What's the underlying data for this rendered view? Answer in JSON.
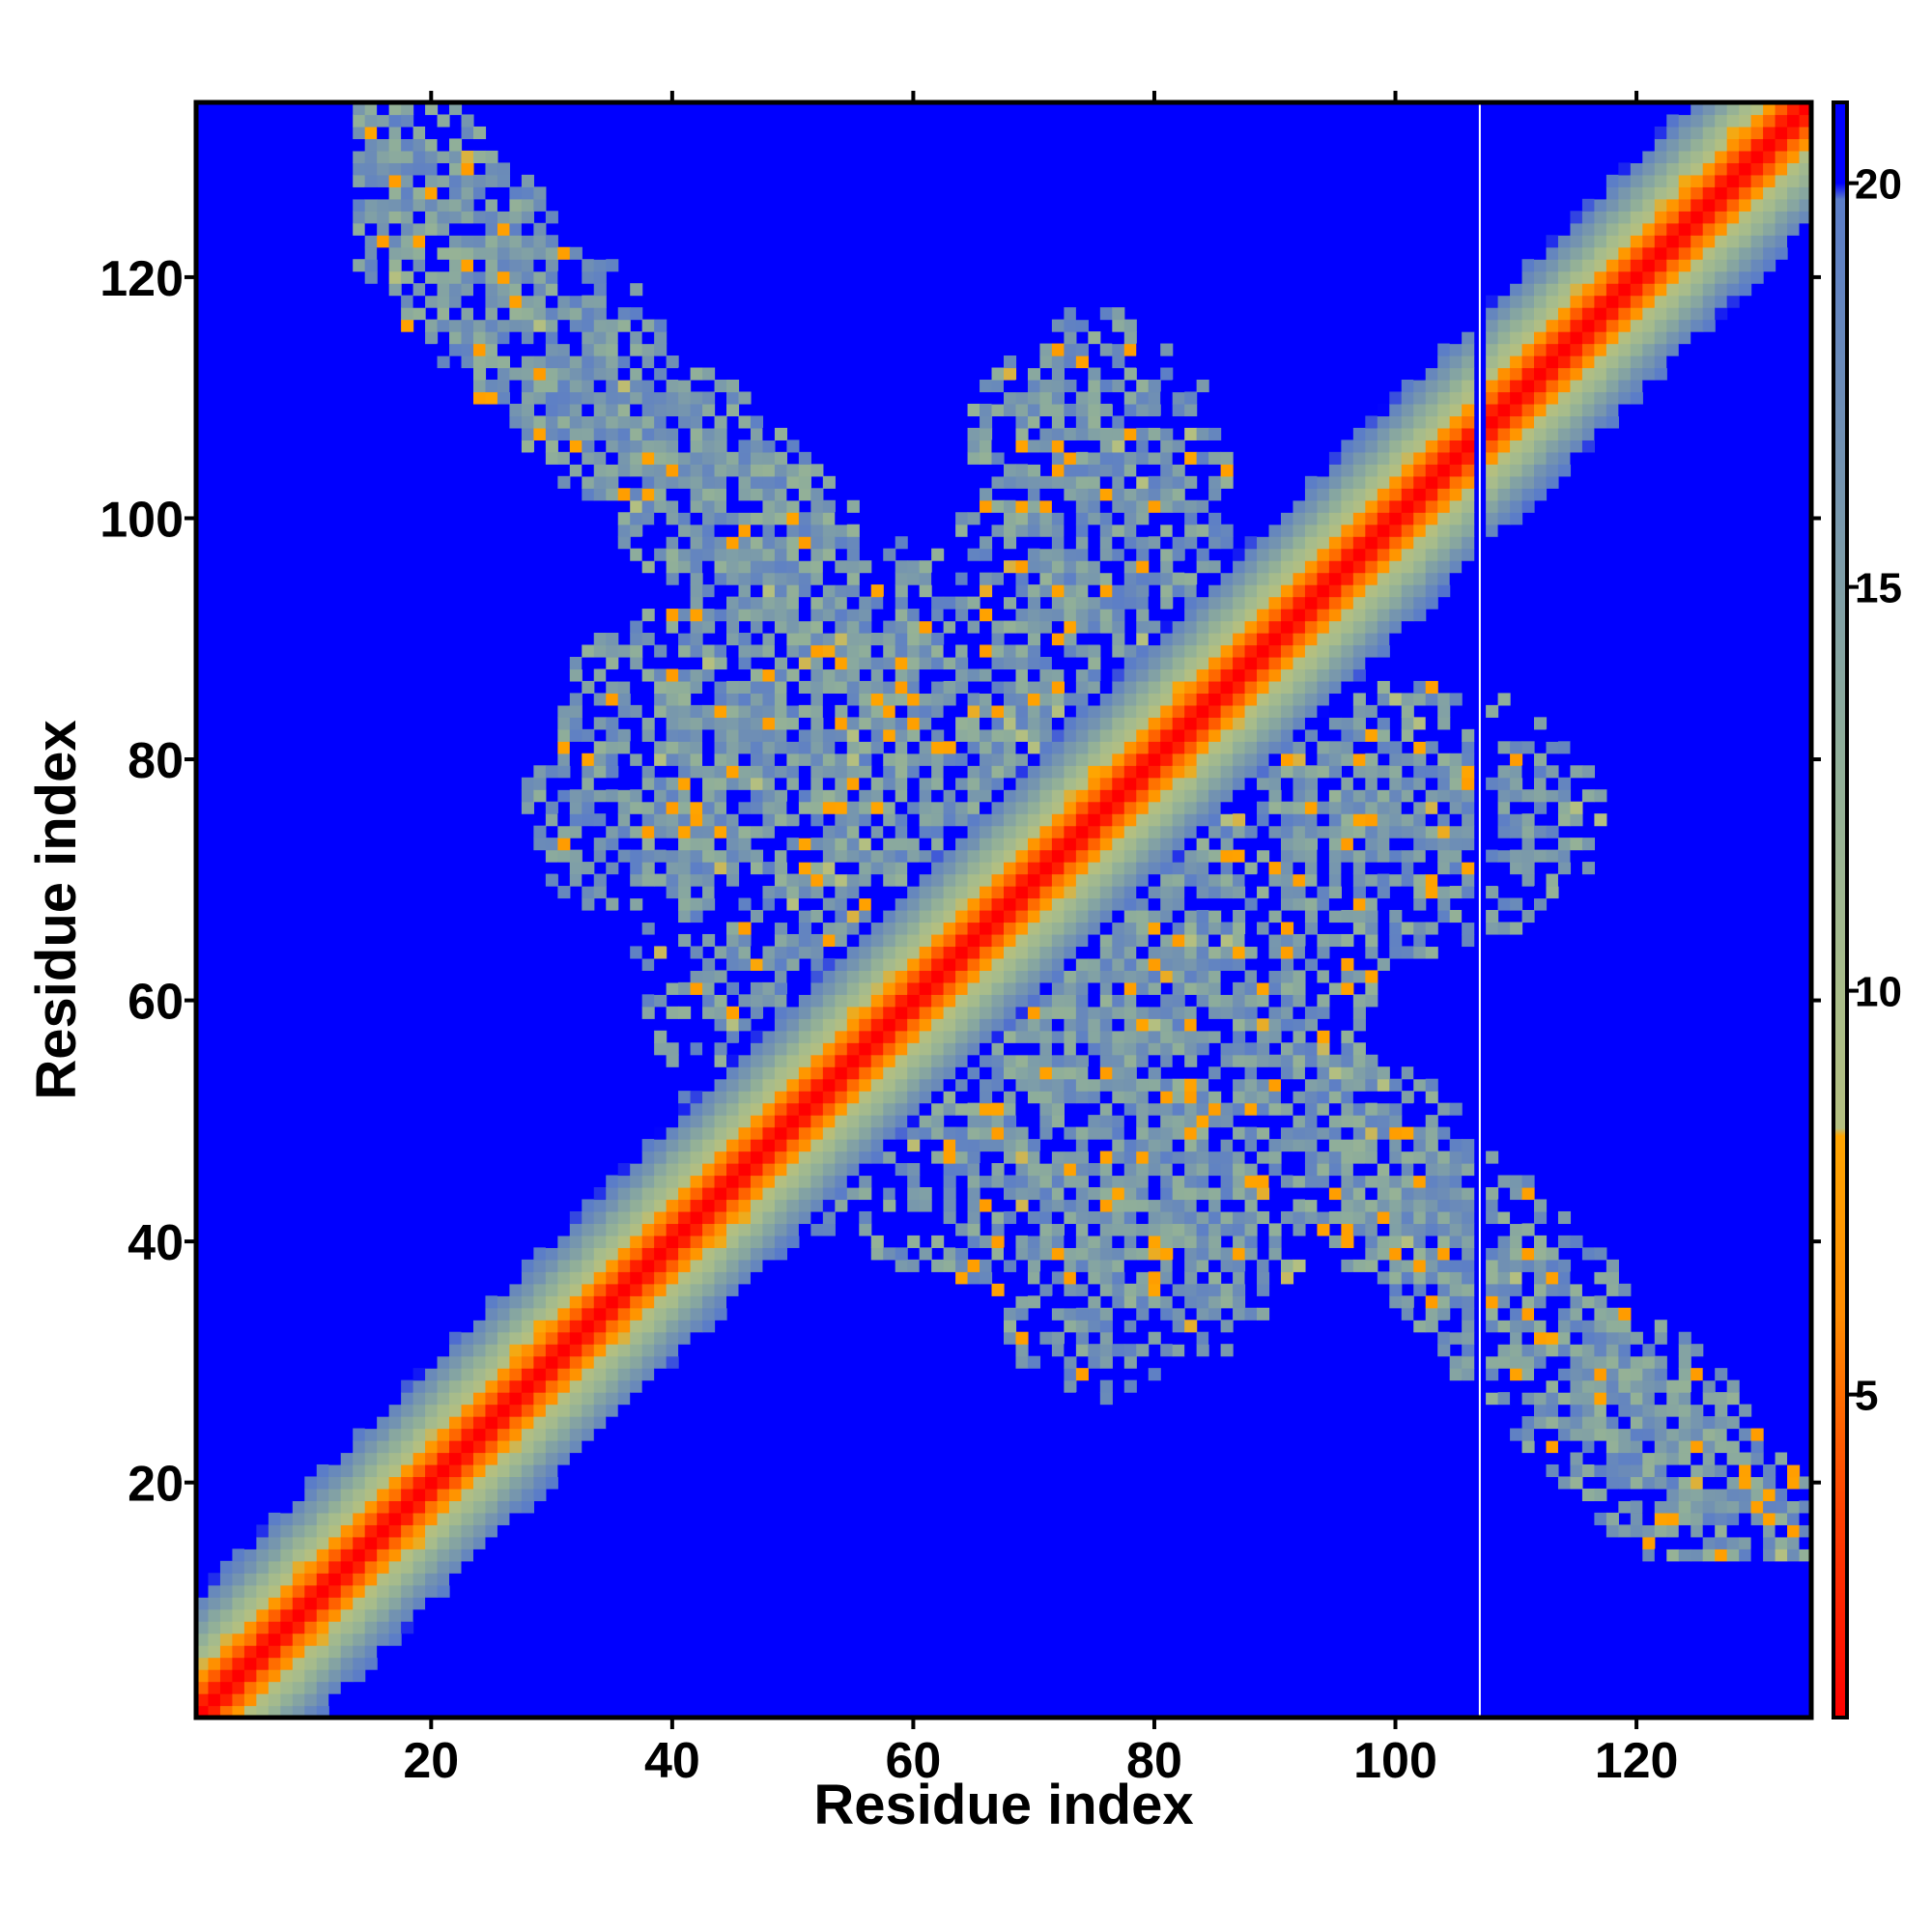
{
  "chart_data": {
    "type": "heatmap",
    "title": "",
    "xlabel": "Residue index",
    "ylabel": "Residue index",
    "xlim": [
      1,
      134
    ],
    "ylim": [
      1,
      134
    ],
    "x_ticks": [
      20,
      40,
      60,
      80,
      100,
      120
    ],
    "y_ticks": [
      20,
      40,
      60,
      80,
      100,
      120
    ],
    "colorbar": {
      "range": [
        1,
        21
      ],
      "ticks": [
        5,
        10,
        15,
        20
      ],
      "stops": [
        {
          "value": 1,
          "color": "#ff0000"
        },
        {
          "value": 3.5,
          "color": "#ff4000"
        },
        {
          "value": 6,
          "color": "#ff8c00"
        },
        {
          "value": 8.2,
          "color": "#ffa500"
        },
        {
          "value": 8.3,
          "color": "#b4bf80"
        },
        {
          "value": 10,
          "color": "#a9bd8a"
        },
        {
          "value": 13,
          "color": "#8fae9a"
        },
        {
          "value": 17,
          "color": "#6f8fb4"
        },
        {
          "value": 19.8,
          "color": "#5b7dc8"
        },
        {
          "value": 20,
          "color": "#0000ff"
        },
        {
          "value": 21,
          "color": "#0000ff"
        }
      ]
    },
    "background_value": 21,
    "gap_column": 107,
    "structure": {
      "diagonal": "distance increases with |i-j| from ~1 on the diagonal to ~20 at |i-j|≈10",
      "contact_regions": [
        {
          "x_range": [
            14,
            55
          ],
          "y_range": [
            95,
            128
          ],
          "description": "upper-left antiparallel band"
        },
        {
          "x_range": [
            95,
            130
          ],
          "y_range": [
            15,
            52
          ],
          "description": "lower-right antiparallel band"
        },
        {
          "x_range": [
            25,
            110
          ],
          "y_range": [
            35,
            92
          ],
          "description": "central speckled contact cluster"
        },
        {
          "x_range": [
            60,
            90
          ],
          "y_range": [
            70,
            120
          ],
          "description": "upper central lobe"
        }
      ]
    }
  }
}
